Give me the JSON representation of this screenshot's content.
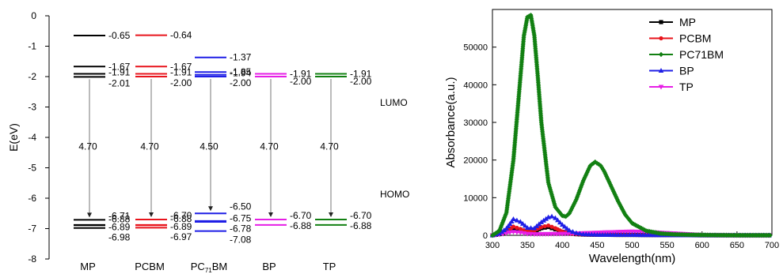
{
  "chart_data": [
    {
      "type": "energy-level-diagram",
      "ylabel": "E(eV)",
      "ylim": [
        -8,
        0
      ],
      "yticks": [
        "0",
        "-1",
        "-2",
        "-3",
        "-4",
        "-5",
        "-6",
        "-7",
        "-8"
      ],
      "side_labels": {
        "lumo": "LUMO",
        "homo": "HOMO"
      },
      "colors": {
        "MP": "#000000",
        "PCBM": "#e8141c",
        "PC71BM": "#1f1fe6",
        "BP": "#e61ee6",
        "TP": "#128012"
      },
      "materials": [
        {
          "key": "MP",
          "name": "MP",
          "lumo_levels": [
            -0.65,
            -1.67,
            -1.91,
            -2.01
          ],
          "lumo_labels": [
            "-0.65",
            "-1.67",
            "-1.91",
            "-2.01"
          ],
          "homo_levels": [
            -6.71,
            -6.88,
            -6.89,
            -6.98
          ],
          "homo_labels": [
            "-6.71",
            "-6.88",
            "-6.89",
            "-6.98"
          ],
          "gap": "4.70"
        },
        {
          "key": "PCBM",
          "name": "PCBM",
          "lumo_levels": [
            -0.64,
            -1.67,
            -1.91,
            -2.0
          ],
          "lumo_labels": [
            "-0.64",
            "-1.67",
            "-1.91",
            "-2.00"
          ],
          "homo_levels": [
            -6.7,
            -6.88,
            -6.89,
            -6.97
          ],
          "homo_labels": [
            "-6.70",
            "-6.88",
            "-6.89",
            "-6.97"
          ],
          "gap": "4.70"
        },
        {
          "key": "PC71BM",
          "name": "PC",
          "name_sub": "71",
          "name_tail": "BM",
          "lumo_levels": [
            -1.37,
            -1.85,
            -1.94,
            -2.0
          ],
          "lumo_labels": [
            "-1.37",
            "-1.85",
            "-1.94",
            "-2.00"
          ],
          "homo_levels": [
            -6.5,
            -6.75,
            -6.78,
            -7.08
          ],
          "homo_labels": [
            "-6.50",
            "-6.75",
            "-6.78",
            "-7.08"
          ],
          "gap": "4.50"
        },
        {
          "key": "BP",
          "name": "BP",
          "lumo_levels": [
            -1.91,
            -2.0
          ],
          "lumo_labels": [
            "-1.91",
            "-2.00"
          ],
          "homo_levels": [
            -6.7,
            -6.88
          ],
          "homo_labels": [
            "-6.70",
            "-6.88"
          ],
          "gap": "4.70"
        },
        {
          "key": "TP",
          "name": "TP",
          "lumo_levels": [
            -1.91,
            -2.0
          ],
          "lumo_labels": [
            "-1.91",
            "-2.00"
          ],
          "homo_levels": [
            -6.7,
            -6.88
          ],
          "homo_labels": [
            "-6.70",
            "-6.88"
          ],
          "gap": "4.70"
        }
      ]
    },
    {
      "type": "line",
      "xlabel": "Wavelength(nm)",
      "ylabel": "Absorbance(a.u.)",
      "xlim": [
        300,
        700
      ],
      "ylim": [
        0,
        60000
      ],
      "xticks": [
        300,
        350,
        400,
        450,
        500,
        550,
        600,
        650,
        700
      ],
      "yticks": [
        0,
        10000,
        20000,
        30000,
        40000,
        50000
      ],
      "legend_position": "top-right",
      "series": [
        {
          "name": "MP",
          "color": "#000000",
          "marker": "square",
          "x": [
            300,
            310,
            320,
            330,
            340,
            350,
            360,
            370,
            380,
            390,
            400,
            410,
            420,
            430,
            450,
            480,
            500,
            550,
            600,
            650,
            700
          ],
          "y": [
            0,
            300,
            900,
            1800,
            1400,
            900,
            1100,
            1900,
            2200,
            1600,
            900,
            500,
            300,
            200,
            150,
            100,
            100,
            50,
            0,
            0,
            0
          ]
        },
        {
          "name": "PCBM",
          "color": "#e8141c",
          "marker": "circle",
          "x": [
            300,
            310,
            320,
            330,
            340,
            350,
            360,
            370,
            380,
            390,
            400,
            410,
            420,
            430,
            450,
            480,
            500,
            550,
            600,
            650,
            700
          ],
          "y": [
            0,
            400,
            1200,
            2300,
            1700,
            1000,
            1300,
            2200,
            2600,
            1900,
            1000,
            600,
            300,
            200,
            150,
            100,
            100,
            50,
            0,
            0,
            0
          ]
        },
        {
          "name": "PC71BM",
          "color": "#128012",
          "marker": "diamond",
          "x": [
            300,
            310,
            320,
            330,
            340,
            345,
            350,
            355,
            360,
            365,
            370,
            380,
            390,
            400,
            405,
            410,
            420,
            430,
            440,
            447,
            455,
            460,
            470,
            480,
            490,
            500,
            520,
            540,
            560,
            580,
            600,
            620,
            650,
            700
          ],
          "y": [
            0,
            1200,
            6000,
            20000,
            42000,
            53000,
            58000,
            58500,
            53000,
            42000,
            30000,
            14000,
            7500,
            5200,
            5000,
            5800,
            9500,
            14500,
            18500,
            19500,
            18500,
            17000,
            13000,
            9000,
            5500,
            3200,
            1200,
            500,
            250,
            150,
            100,
            50,
            0,
            0
          ]
        },
        {
          "name": "BP",
          "color": "#1f1fe6",
          "marker": "triangle-up",
          "x": [
            300,
            310,
            320,
            330,
            340,
            350,
            360,
            370,
            380,
            385,
            390,
            400,
            410,
            420,
            430,
            450,
            480,
            500,
            550,
            600,
            650,
            700
          ],
          "y": [
            0,
            500,
            1800,
            4300,
            3600,
            2000,
            1900,
            3500,
            4800,
            5000,
            4600,
            2800,
            1300,
            600,
            300,
            150,
            100,
            100,
            50,
            0,
            0,
            0
          ]
        },
        {
          "name": "TP",
          "color": "#e61ee6",
          "marker": "triangle-down",
          "x": [
            300,
            310,
            320,
            330,
            340,
            350,
            360,
            380,
            400,
            420,
            450,
            480,
            500,
            520,
            550,
            580,
            600,
            650,
            700
          ],
          "y": [
            0,
            200,
            600,
            900,
            700,
            400,
            300,
            350,
            400,
            500,
            700,
            900,
            1000,
            900,
            600,
            300,
            100,
            0,
            0
          ]
        }
      ]
    }
  ]
}
